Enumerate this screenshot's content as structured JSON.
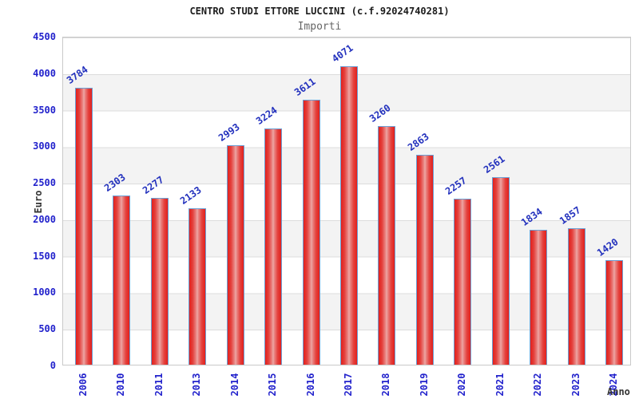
{
  "header": {
    "title": "CENTRO STUDI ETTORE LUCCINI (c.f.92024740281)",
    "subtitle": "Importi"
  },
  "chart_data": {
    "type": "bar",
    "title": "CENTRO STUDI ETTORE LUCCINI (c.f.92024740281)",
    "subtitle": "Importi",
    "xlabel": "Anno",
    "ylabel": "Euro",
    "categories": [
      "2006",
      "2010",
      "2011",
      "2013",
      "2014",
      "2015",
      "2016",
      "2017",
      "2018",
      "2019",
      "2020",
      "2021",
      "2022",
      "2023",
      "2024"
    ],
    "values": [
      3784,
      2303,
      2277,
      2133,
      2993,
      3224,
      3611,
      4071,
      3260,
      2863,
      2257,
      2561,
      1834,
      1857,
      1420
    ],
    "ylim": [
      0,
      4500
    ],
    "ytick_step": 500,
    "yticks": [
      "0",
      "500",
      "1000",
      "1500",
      "2000",
      "2500",
      "3000",
      "3500",
      "4000",
      "4500"
    ],
    "grid": "horizontal-bands-alternating",
    "legend": "none",
    "colors": {
      "bar_red": "#e2201c",
      "bar_center_highlight": "#efaaaa",
      "bar_border_blue": "#6b9fd4",
      "tick_label_blue": "#2222cc",
      "value_label_blue": "#2230bd",
      "band_gray": "#f3f3f3",
      "gridline_gray": "#dcdcdc",
      "axis_title_gray": "#333333",
      "title_black": "#1c1c1c",
      "subtitle_gray": "#666666"
    }
  }
}
